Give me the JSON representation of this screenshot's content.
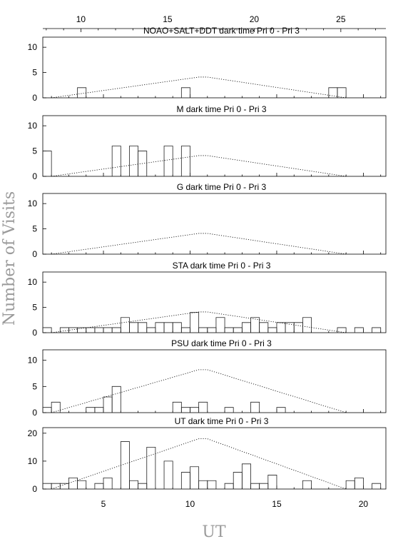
{
  "figure": {
    "xlabel": "UT",
    "ylabel": "Number of Visits",
    "top_axis": {
      "ticks": [
        10,
        15,
        20,
        25
      ]
    },
    "bottom_axis": {
      "ticks": [
        5,
        10,
        15,
        20
      ]
    }
  },
  "chart_data": [
    {
      "type": "histogram",
      "title": "NOAO+SALT+DDT dark time Pri 0 - Pri 3",
      "xlim": [
        1.5,
        21.3
      ],
      "ylim": [
        0,
        12
      ],
      "yticks": [
        0,
        5,
        10
      ],
      "bin_width": 0.5,
      "bins": [
        [
          3.5,
          2
        ],
        [
          9.5,
          2
        ],
        [
          18,
          2
        ],
        [
          18.5,
          2
        ]
      ],
      "reference_line": [
        [
          2,
          0
        ],
        [
          10.5,
          4.1
        ],
        [
          11,
          4.1
        ],
        [
          19,
          0
        ]
      ]
    },
    {
      "type": "histogram",
      "title": "M    dark time Pri 0 - Pri 3",
      "xlim": [
        1.5,
        21.3
      ],
      "ylim": [
        0,
        12
      ],
      "yticks": [
        0,
        5,
        10
      ],
      "bin_width": 0.5,
      "bins": [
        [
          1.5,
          5
        ],
        [
          5.5,
          6
        ],
        [
          6.5,
          6
        ],
        [
          7,
          5
        ],
        [
          8.5,
          6
        ],
        [
          9.5,
          6
        ]
      ],
      "reference_line": [
        [
          2,
          0
        ],
        [
          10.5,
          4.1
        ],
        [
          11,
          4.1
        ],
        [
          19,
          0
        ]
      ]
    },
    {
      "type": "histogram",
      "title": "G    dark time Pri 0 - Pri 3",
      "xlim": [
        1.5,
        21.3
      ],
      "ylim": [
        0,
        12
      ],
      "yticks": [
        0,
        5,
        10
      ],
      "bin_width": 0.5,
      "bins": [],
      "reference_line": [
        [
          2,
          0
        ],
        [
          10.5,
          4.1
        ],
        [
          11,
          4.1
        ],
        [
          19,
          0
        ]
      ]
    },
    {
      "type": "histogram",
      "title": "STA    dark time Pri 0 - Pri 3",
      "xlim": [
        1.5,
        21.3
      ],
      "ylim": [
        0,
        12
      ],
      "yticks": [
        0,
        5,
        10
      ],
      "bin_width": 0.5,
      "bins": [
        [
          1.5,
          1
        ],
        [
          2.5,
          1
        ],
        [
          3,
          1
        ],
        [
          3.5,
          1
        ],
        [
          4,
          1
        ],
        [
          4.5,
          1
        ],
        [
          5,
          1
        ],
        [
          5.5,
          1
        ],
        [
          6,
          3
        ],
        [
          6.5,
          2
        ],
        [
          7,
          2
        ],
        [
          7.5,
          1
        ],
        [
          8,
          2
        ],
        [
          8.5,
          2
        ],
        [
          9,
          2
        ],
        [
          9.5,
          1
        ],
        [
          10,
          4
        ],
        [
          10.5,
          1
        ],
        [
          11,
          1
        ],
        [
          11.5,
          3
        ],
        [
          12,
          1
        ],
        [
          12.5,
          1
        ],
        [
          13,
          2
        ],
        [
          13.5,
          3
        ],
        [
          14,
          2
        ],
        [
          14.5,
          1
        ],
        [
          15,
          2
        ],
        [
          15.5,
          2
        ],
        [
          16,
          2
        ],
        [
          16.5,
          3
        ],
        [
          18.5,
          1
        ],
        [
          19.5,
          1
        ],
        [
          20.5,
          1
        ]
      ],
      "reference_line": [
        [
          2,
          0
        ],
        [
          10.5,
          4.1
        ],
        [
          11,
          4.1
        ],
        [
          19,
          0
        ]
      ]
    },
    {
      "type": "histogram",
      "title": "PSU    dark time Pri 0 - Pri 3",
      "xlim": [
        1.5,
        21.3
      ],
      "ylim": [
        0,
        12
      ],
      "yticks": [
        0,
        5,
        10
      ],
      "bin_width": 0.5,
      "bins": [
        [
          1.5,
          1
        ],
        [
          2,
          2
        ],
        [
          4,
          1
        ],
        [
          4.5,
          1
        ],
        [
          5,
          3
        ],
        [
          5.5,
          5
        ],
        [
          9,
          2
        ],
        [
          9.5,
          1
        ],
        [
          10,
          1
        ],
        [
          10.5,
          2
        ],
        [
          12,
          1
        ],
        [
          13.5,
          2
        ],
        [
          15,
          1
        ]
      ],
      "reference_line": [
        [
          2,
          0
        ],
        [
          10.5,
          8.2
        ],
        [
          11,
          8.2
        ],
        [
          19,
          0
        ]
      ]
    },
    {
      "type": "histogram",
      "title": "UT    dark time Pri 0 - Pri 3",
      "xlim": [
        1.5,
        21.3
      ],
      "ylim": [
        0,
        22
      ],
      "yticks": [
        0,
        10,
        20
      ],
      "bin_width": 0.5,
      "bins": [
        [
          1.5,
          2
        ],
        [
          2,
          2
        ],
        [
          2.5,
          2
        ],
        [
          3,
          4
        ],
        [
          3.5,
          3
        ],
        [
          4.5,
          2
        ],
        [
          5,
          4
        ],
        [
          6,
          17
        ],
        [
          6.5,
          3
        ],
        [
          7,
          2
        ],
        [
          7.5,
          15
        ],
        [
          8.5,
          10
        ],
        [
          9.5,
          6
        ],
        [
          10,
          8
        ],
        [
          10.5,
          3
        ],
        [
          11,
          3
        ],
        [
          12,
          2
        ],
        [
          12.5,
          6
        ],
        [
          13,
          9
        ],
        [
          13.5,
          2
        ],
        [
          14,
          2
        ],
        [
          14.5,
          5
        ],
        [
          16.5,
          3
        ],
        [
          19,
          3
        ],
        [
          19.5,
          4
        ],
        [
          20.5,
          2
        ]
      ],
      "reference_line": [
        [
          2,
          0
        ],
        [
          10.5,
          18
        ],
        [
          11,
          18
        ],
        [
          19,
          0
        ]
      ]
    }
  ]
}
